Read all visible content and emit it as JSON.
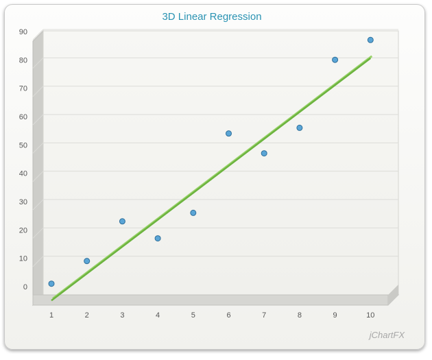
{
  "chart_data": {
    "type": "scatter",
    "title": "3D Linear Regression",
    "xlabel": "",
    "ylabel": "",
    "x": [
      1,
      2,
      3,
      4,
      5,
      6,
      7,
      8,
      9,
      10
    ],
    "series": [
      {
        "kind": "points",
        "values": [
          2,
          10,
          24,
          18,
          27,
          55,
          48,
          57,
          81,
          88
        ],
        "color": "#5aa5d6"
      },
      {
        "kind": "regression-line",
        "values": [
          -2,
          7.5,
          17,
          26.5,
          36,
          45.5,
          55,
          64.5,
          74,
          83.5
        ],
        "color": "#6cb33f"
      }
    ],
    "xlim": [
      1,
      10
    ],
    "ylim": [
      0,
      90
    ],
    "x_ticks": [
      "1",
      "2",
      "3",
      "4",
      "5",
      "6",
      "7",
      "8",
      "9",
      "10"
    ],
    "y_ticks": [
      "0",
      "10",
      "20",
      "30",
      "40",
      "50",
      "60",
      "70",
      "80",
      "90"
    ],
    "grid": true,
    "style": "3d"
  },
  "branding": "jChartFX"
}
